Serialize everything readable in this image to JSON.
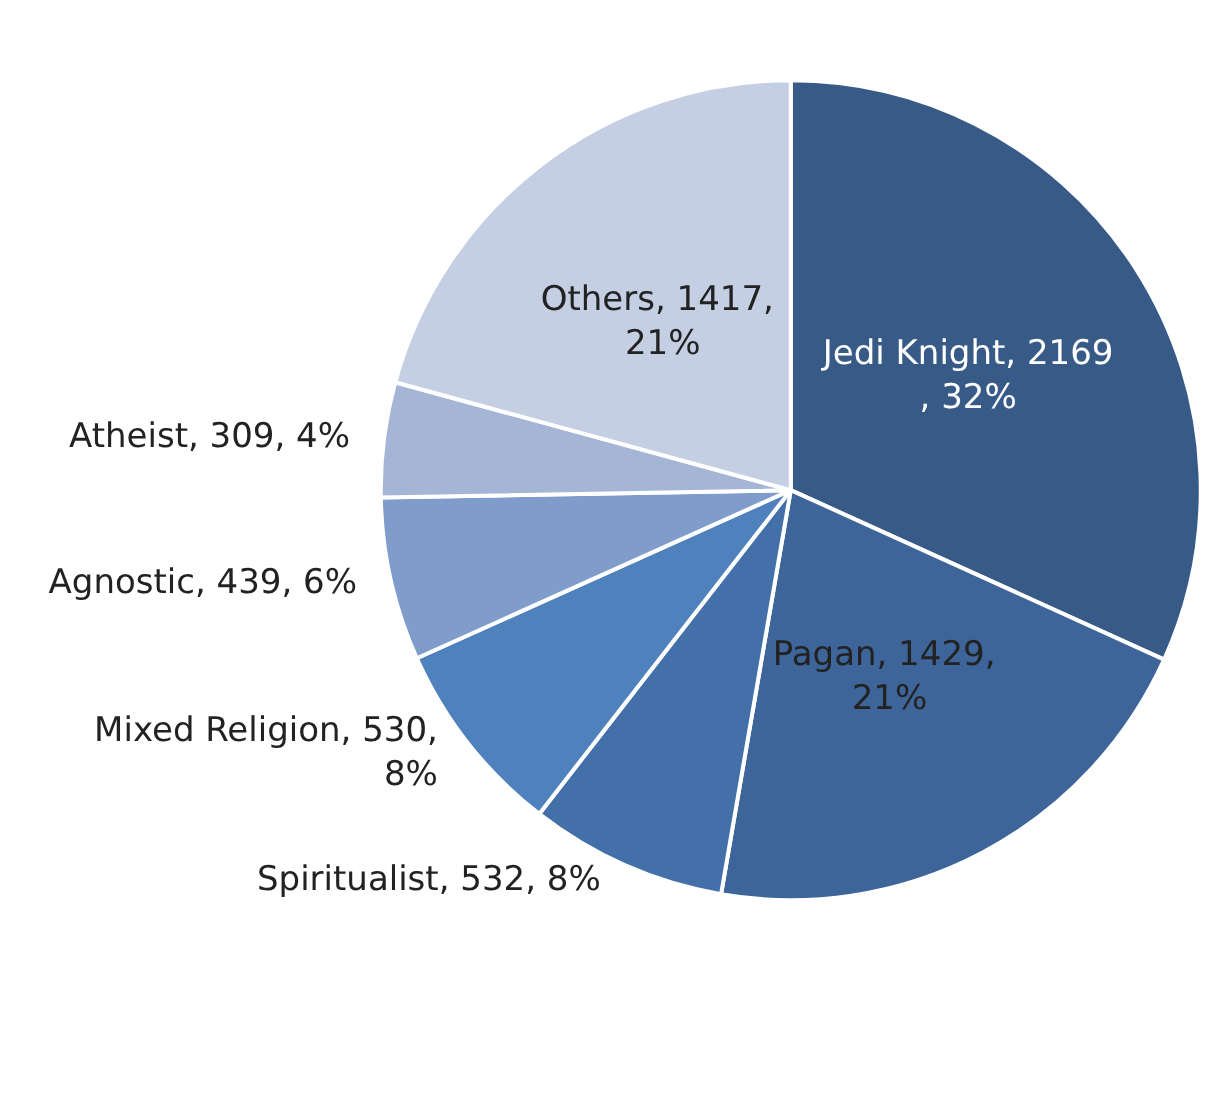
{
  "chart_data": {
    "type": "pie",
    "categories": [
      "Jedi Knight",
      "Pagan",
      "Spiritualist",
      "Mixed Religion",
      "Agnostic",
      "Atheist",
      "Others"
    ],
    "values": [
      2169,
      1429,
      532,
      530,
      439,
      309,
      1417
    ],
    "value_labels": [
      "2169, 32%",
      "1429, 21%",
      "532, 8%",
      "530, 8%",
      "439, 6%",
      "309, 4%",
      "1417, 21%"
    ],
    "colors": [
      "#375a87",
      "#3e6599",
      "#4470aa",
      "#4f81bd",
      "#7f9ccb",
      "#a5b5d6",
      "#c5cfe3"
    ]
  }
}
